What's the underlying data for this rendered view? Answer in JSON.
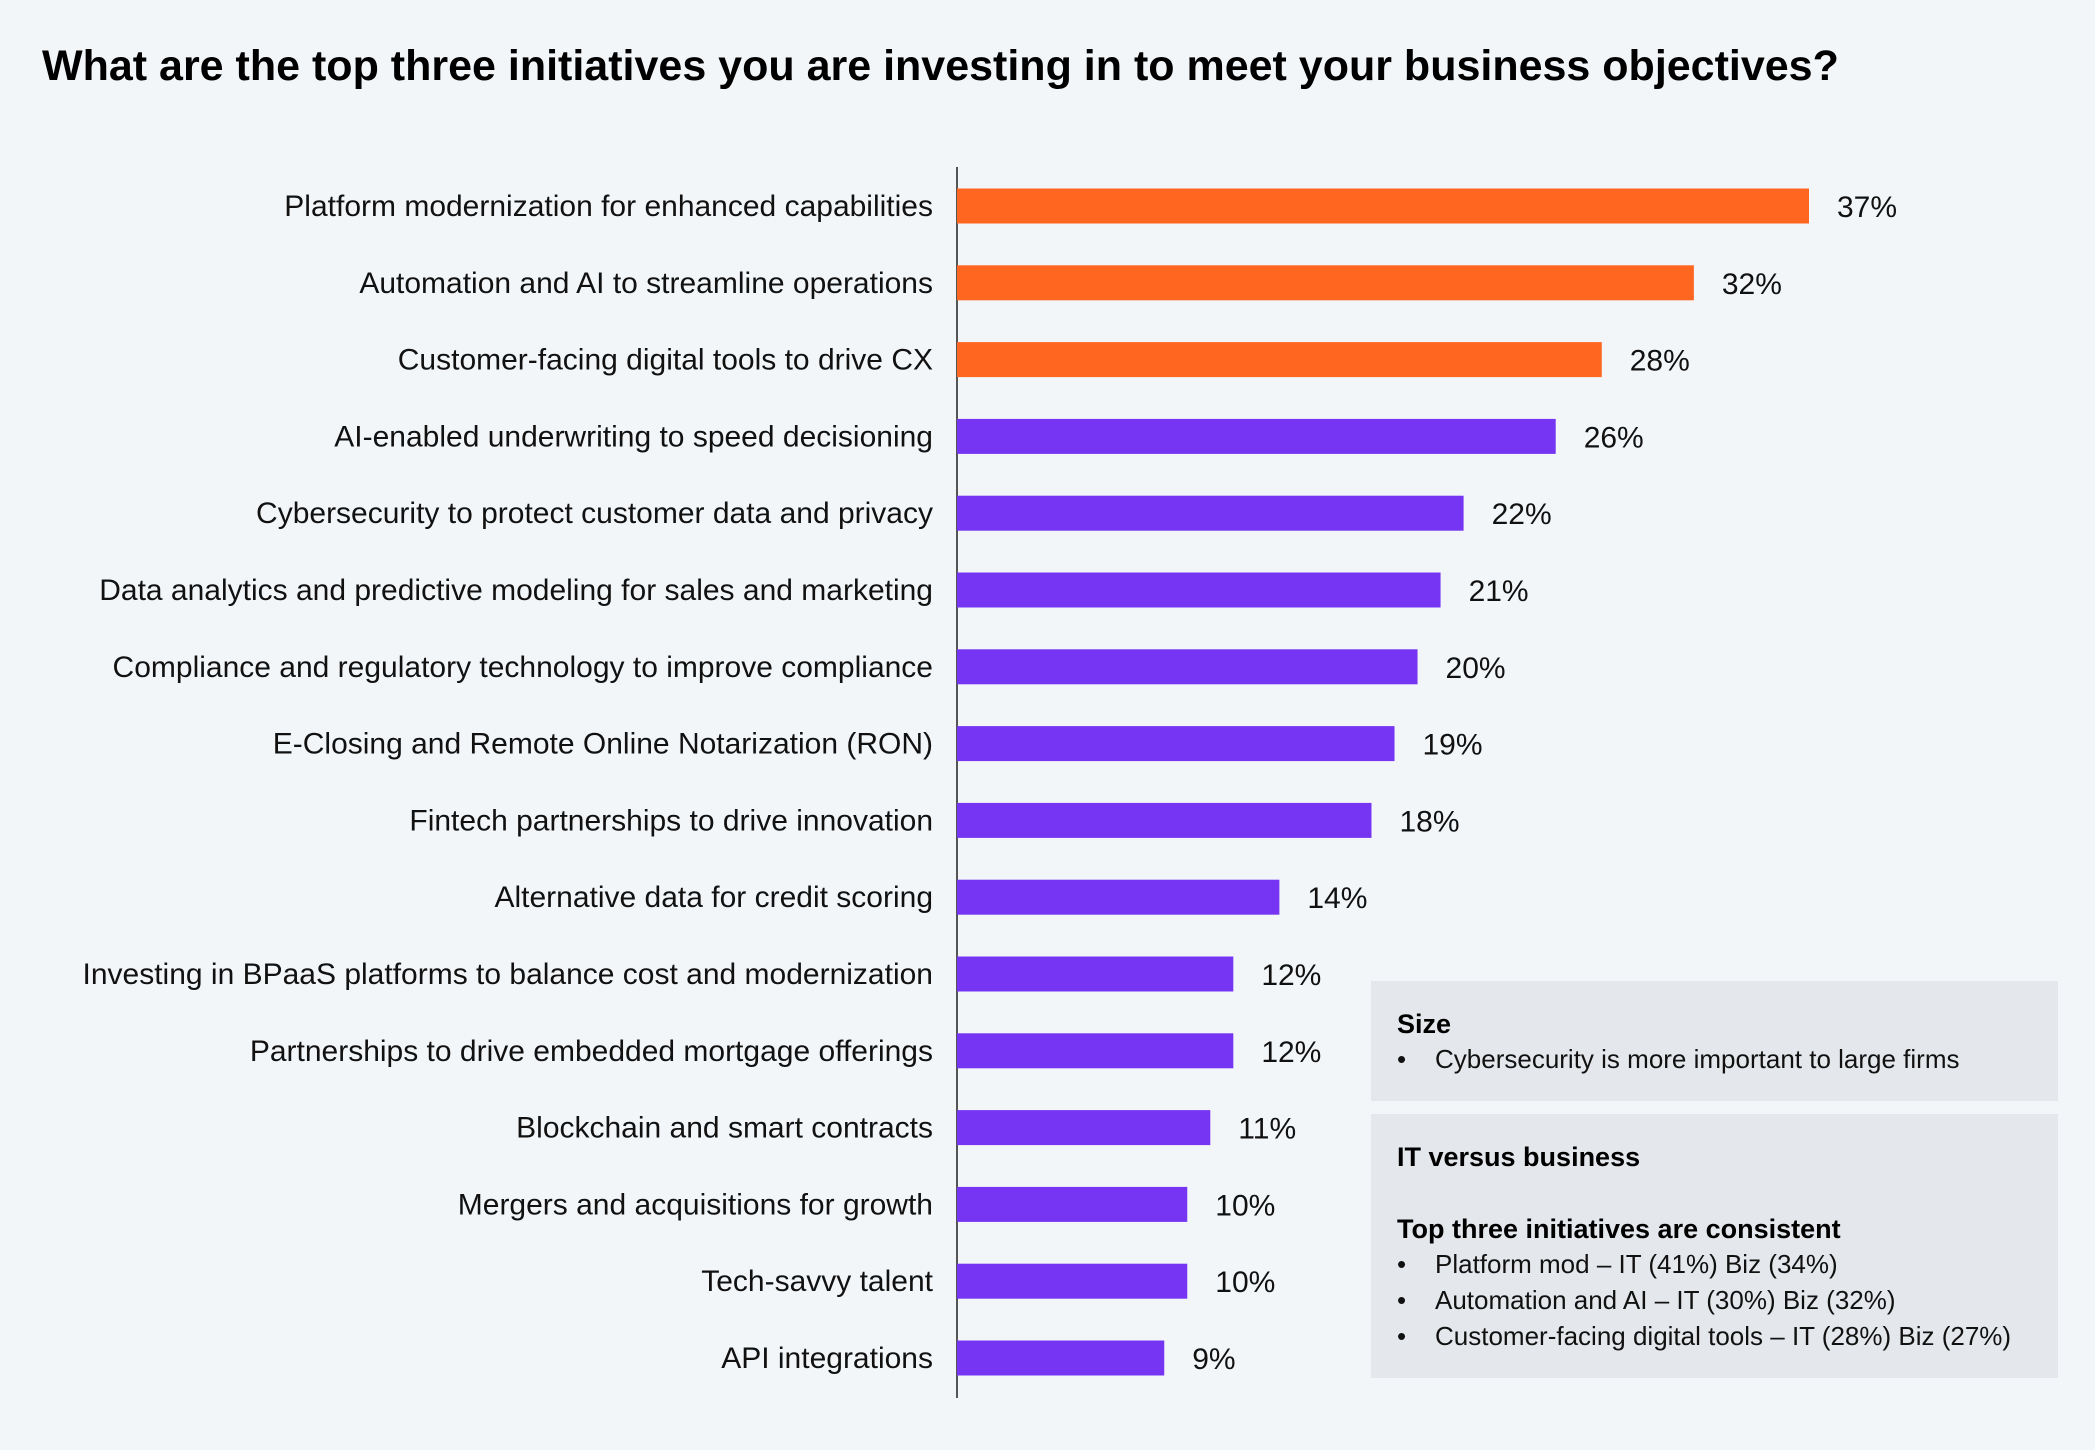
{
  "title": "What are the top three initiatives you are investing in to meet your business objectives?",
  "colors": {
    "highlight": "#ff6620",
    "default": "#7535f2",
    "axis": "#555555"
  },
  "chart_data": {
    "type": "bar",
    "orientation": "horizontal",
    "categories": [
      "Platform modernization for enhanced capabilities",
      "Automation and AI to streamline operations",
      "Customer-facing digital tools to drive CX",
      "AI-enabled underwriting to speed decisioning",
      "Cybersecurity to protect customer data and privacy",
      "Data analytics and predictive modeling for sales and marketing",
      "Compliance and regulatory technology to improve compliance",
      "E-Closing and Remote Online Notarization (RON)",
      "Fintech partnerships to drive innovation",
      "Alternative data for credit scoring",
      "Investing in BPaaS platforms to balance cost and modernization",
      "Partnerships to drive embedded mortgage offerings",
      "Blockchain and smart contracts",
      "Mergers and acquisitions for growth",
      "Tech-savvy talent",
      "API integrations"
    ],
    "values": [
      37,
      32,
      28,
      26,
      22,
      21,
      20,
      19,
      18,
      14,
      12,
      12,
      11,
      10,
      10,
      9
    ],
    "value_labels": [
      "37%",
      "32%",
      "28%",
      "26%",
      "22%",
      "21%",
      "20%",
      "19%",
      "18%",
      "14%",
      "12%",
      "12%",
      "11%",
      "10%",
      "10%",
      "9%"
    ],
    "highlighted_count": 3,
    "xlim": [
      0,
      37
    ],
    "grid": false,
    "legend": "none"
  },
  "panels": {
    "size": {
      "heading": "Size",
      "bullets": [
        "Cybersecurity is more important to large firms"
      ]
    },
    "it_vs_business": {
      "heading": "IT versus business",
      "subheading": "Top three initiatives are consistent",
      "bullets": [
        "Platform mod – IT (41%) Biz (34%)",
        "Automation and AI – IT (30%) Biz (32%)",
        "Customer-facing digital tools – IT (28%) Biz (27%)"
      ]
    }
  }
}
